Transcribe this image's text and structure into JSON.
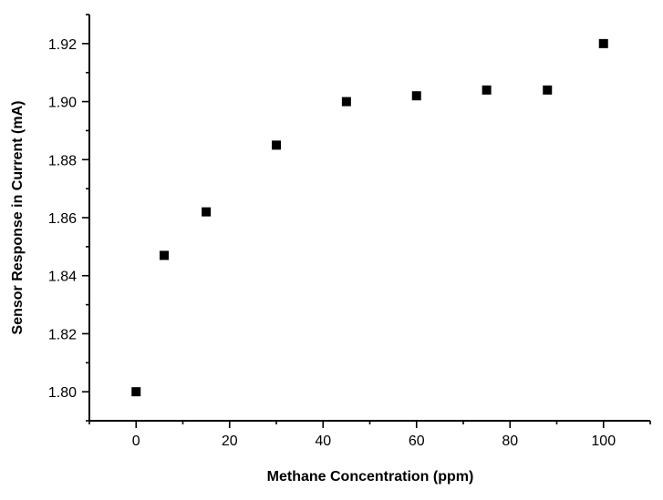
{
  "chart_data": {
    "type": "scatter",
    "title": "",
    "xlabel": "Methane Concentration (ppm)",
    "ylabel": "Sensor Response in Current (mA)",
    "xlim": [
      -10,
      110
    ],
    "ylim": [
      1.79,
      1.93
    ],
    "xticks": [
      "0",
      "20",
      "40",
      "60",
      "80",
      "100"
    ],
    "yticks": [
      "1.80",
      "1.82",
      "1.84",
      "1.86",
      "1.88",
      "1.90",
      "1.92"
    ],
    "grid": false,
    "legend": "none",
    "marker_color": "#000000",
    "series": [
      {
        "x": [
          0,
          6,
          15,
          30,
          45,
          60,
          75,
          88,
          100
        ],
        "y": [
          1.8,
          1.847,
          1.862,
          1.885,
          1.9,
          1.902,
          1.904,
          1.904,
          1.92
        ]
      }
    ]
  }
}
